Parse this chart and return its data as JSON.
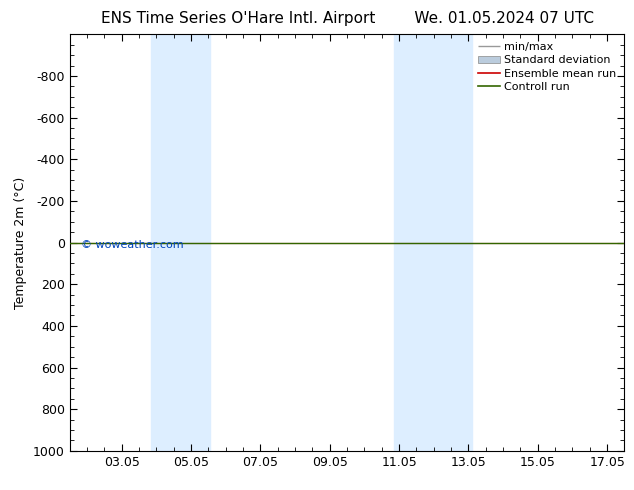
{
  "title_left": "ENS Time Series O'Hare Intl. Airport",
  "title_right": "We. 01.05.2024 07 UTC",
  "ylabel": "Temperature 2m (°C)",
  "ylim_top": -1000,
  "ylim_bottom": 1000,
  "yticks": [
    -800,
    -600,
    -400,
    -200,
    0,
    200,
    400,
    600,
    800,
    1000
  ],
  "xlim_left": 1.5,
  "xlim_right": 17.5,
  "xtick_labels": [
    "03.05",
    "05.05",
    "07.05",
    "09.05",
    "11.05",
    "13.05",
    "15.05",
    "17.05"
  ],
  "xtick_positions": [
    3,
    5,
    7,
    9,
    11,
    13,
    15,
    17
  ],
  "shaded_bands": [
    [
      3.9,
      4.5
    ],
    [
      4.5,
      5.5
    ],
    [
      10.9,
      11.6
    ],
    [
      11.6,
      13.1
    ]
  ],
  "shade_color": "#ddeeff",
  "shade_color2": "#c8e4f8",
  "control_run_y": 0,
  "ensemble_mean_y": 0,
  "control_run_color": "#336600",
  "ensemble_mean_color": "#cc0000",
  "watermark": "© woweather.com",
  "watermark_color": "#0044bb",
  "legend_entries": [
    "min/max",
    "Standard deviation",
    "Ensemble mean run",
    "Controll run"
  ],
  "legend_line_colors": [
    "#999999",
    "#bbccdd",
    "#cc0000",
    "#336600"
  ],
  "background_color": "#ffffff",
  "title_fontsize": 11,
  "axis_fontsize": 9,
  "tick_fontsize": 9,
  "legend_fontsize": 8
}
